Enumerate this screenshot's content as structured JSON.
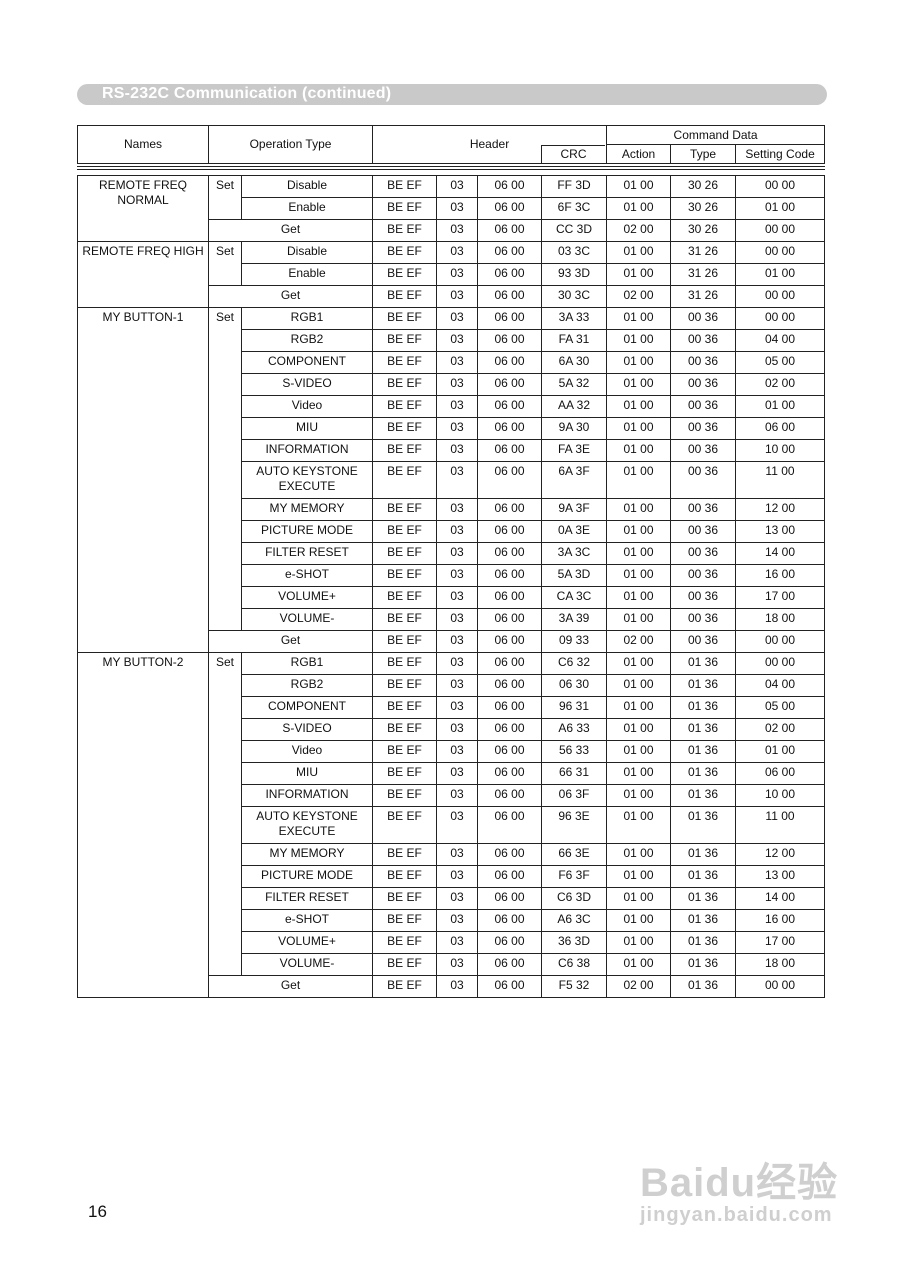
{
  "banner_title": "RS-232C Communication (continued)",
  "header": {
    "names": "Names",
    "operation_type": "Operation Type",
    "header": "Header",
    "command_data": "Command Data",
    "crc": "CRC",
    "action": "Action",
    "type": "Type",
    "setting_code": "Setting Code"
  },
  "set_label": "Set",
  "get_label": "Get",
  "header_bytes": [
    "BE  EF",
    "03",
    "06  00"
  ],
  "groups": [
    {
      "name": "REMOTE FREQ NORMAL",
      "type": "30 26",
      "set": [
        [
          "Disable",
          "FF 3D",
          "01 00",
          "00 00"
        ],
        [
          "Enable",
          "6F 3C",
          "01 00",
          "01 00"
        ]
      ],
      "get": [
        "CC 3D",
        "02 00",
        "00 00"
      ]
    },
    {
      "name": "REMOTE FREQ HIGH",
      "type": "31 26",
      "set": [
        [
          "Disable",
          "03 3C",
          "01 00",
          "00 00"
        ],
        [
          "Enable",
          "93 3D",
          "01 00",
          "01 00"
        ]
      ],
      "get": [
        "30 3C",
        "02 00",
        "00 00"
      ]
    },
    {
      "name": "MY BUTTON-1",
      "type": "00 36",
      "set": [
        [
          "RGB1",
          "3A 33",
          "01 00",
          "00 00"
        ],
        [
          "RGB2",
          "FA 31",
          "01 00",
          "04 00"
        ],
        [
          "COMPONENT",
          "6A 30",
          "01 00",
          "05 00"
        ],
        [
          "S-VIDEO",
          "5A 32",
          "01 00",
          "02 00"
        ],
        [
          "Video",
          "AA 32",
          "01 00",
          "01 00"
        ],
        [
          "MIU",
          "9A 30",
          "01 00",
          "06 00"
        ],
        [
          "INFORMATION",
          "FA 3E",
          "01 00",
          "10 00"
        ],
        [
          "AUTO KEYSTONE EXECUTE",
          "6A 3F",
          "01 00",
          "11 00"
        ],
        [
          "MY MEMORY",
          "9A 3F",
          "01 00",
          "12 00"
        ],
        [
          "PICTURE MODE",
          "0A 3E",
          "01 00",
          "13 00"
        ],
        [
          "FILTER RESET",
          "3A 3C",
          "01 00",
          "14 00"
        ],
        [
          "e-SHOT",
          "5A 3D",
          "01 00",
          "16 00"
        ],
        [
          "VOLUME+",
          "CA 3C",
          "01 00",
          "17 00"
        ],
        [
          "VOLUME-",
          "3A 39",
          "01 00",
          "18 00"
        ]
      ],
      "get": [
        "09 33",
        "02 00",
        "00 00"
      ]
    },
    {
      "name": "MY BUTTON-2",
      "type": "01 36",
      "set": [
        [
          "RGB1",
          "C6 32",
          "01 00",
          "00 00"
        ],
        [
          "RGB2",
          "06 30",
          "01 00",
          "04 00"
        ],
        [
          "COMPONENT",
          "96 31",
          "01 00",
          "05 00"
        ],
        [
          "S-VIDEO",
          "A6 33",
          "01 00",
          "02 00"
        ],
        [
          "Video",
          "56 33",
          "01 00",
          "01 00"
        ],
        [
          "MIU",
          "66 31",
          "01 00",
          "06 00"
        ],
        [
          "INFORMATION",
          "06 3F",
          "01 00",
          "10 00"
        ],
        [
          "AUTO KEYSTONE EXECUTE",
          "96 3E",
          "01 00",
          "11 00"
        ],
        [
          "MY MEMORY",
          "66 3E",
          "01 00",
          "12 00"
        ],
        [
          "PICTURE MODE",
          "F6 3F",
          "01 00",
          "13 00"
        ],
        [
          "FILTER RESET",
          "C6 3D",
          "01 00",
          "14 00"
        ],
        [
          "e-SHOT",
          "A6 3C",
          "01 00",
          "16 00"
        ],
        [
          "VOLUME+",
          "36 3D",
          "01 00",
          "17 00"
        ],
        [
          "VOLUME-",
          "C6 38",
          "01 00",
          "18 00"
        ]
      ],
      "get": [
        "F5 32",
        "02 00",
        "00 00"
      ]
    }
  ],
  "page_number": "16",
  "watermark": {
    "logo": "Baidu经验",
    "url": "jingyan.baidu.com"
  }
}
